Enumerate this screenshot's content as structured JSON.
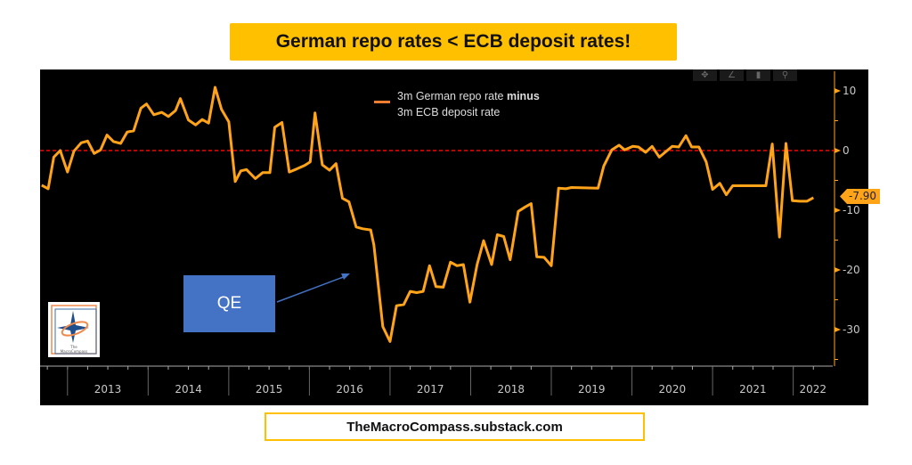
{
  "title": "German repo rates < ECB deposit rates!",
  "footer": "TheMacroCompass.substack.com",
  "annotation": {
    "label": "QE",
    "color": "#4472C4"
  },
  "logo": {
    "text": "The MacroCompass"
  },
  "toolbar": {
    "icons": [
      "move-icon",
      "draw-icon",
      "save-icon",
      "zoom-icon"
    ]
  },
  "colors": {
    "line": "#FFA319",
    "zero_line": "#FF0000",
    "background": "#000000",
    "title_bg": "#FFC000",
    "legend_swatch": "#ED7D31"
  },
  "chart_data": {
    "type": "line",
    "title": "",
    "legend": {
      "line1": "3m German repo rate ",
      "line1_bold": "minus",
      "line2": "3m ECB deposit rate",
      "placement": "top-center"
    },
    "last_value_label": "-7.90",
    "xlim": [
      2012.66,
      2022.49
    ],
    "ylim": [
      -36,
      14
    ],
    "y_ticks": [
      10,
      0,
      -10,
      -20,
      -30
    ],
    "y_tick_labels": [
      "10",
      "0",
      "-10",
      "-20",
      "-30"
    ],
    "x_tick_labels": [
      "2013",
      "2014",
      "2015",
      "2016",
      "2017",
      "2018",
      "2019",
      "2020",
      "2021",
      "2022"
    ],
    "reference_line": {
      "y": 0,
      "style": "dashed"
    },
    "grid": false,
    "y_axis_side": "right",
    "series": [
      {
        "x": [
          2012.68,
          2012.76,
          2012.83,
          2012.91,
          2013.0,
          2013.08,
          2013.17,
          2013.25,
          2013.33,
          2013.41,
          2013.49,
          2013.57,
          2013.66,
          2013.74,
          2013.82,
          2013.91,
          2013.98,
          2014.07,
          2014.17,
          2014.25,
          2014.34,
          2014.4,
          2014.5,
          2014.59,
          2014.67,
          2014.75,
          2014.83,
          2014.91,
          2015.0,
          2015.08,
          2015.15,
          2015.22,
          2015.33,
          2015.42,
          2015.51,
          2015.57,
          2015.66,
          2015.75,
          2015.84,
          2015.94,
          2016.01,
          2016.07,
          2016.16,
          2016.25,
          2016.33,
          2016.41,
          2016.49,
          2016.58,
          2016.66,
          2016.76,
          2016.8,
          2016.91,
          2017.0,
          2017.08,
          2017.17,
          2017.25,
          2017.33,
          2017.41,
          2017.49,
          2017.57,
          2017.66,
          2017.75,
          2017.83,
          2017.91,
          2017.99,
          2018.08,
          2018.16,
          2018.26,
          2018.33,
          2018.41,
          2018.49,
          2018.59,
          2018.67,
          2018.75,
          2018.82,
          2018.91,
          2019.0,
          2019.09,
          2019.18,
          2019.25,
          2019.58,
          2019.65,
          2019.75,
          2019.84,
          2019.91,
          2020.01,
          2020.08,
          2020.17,
          2020.25,
          2020.34,
          2020.41,
          2020.5,
          2020.58,
          2020.67,
          2020.74,
          2020.83,
          2020.92,
          2021.0,
          2021.09,
          2021.17,
          2021.25,
          2021.66,
          2021.74,
          2021.83,
          2021.91,
          2021.99,
          2022.08,
          2022.17,
          2022.25
        ],
        "y": [
          -5.8,
          -6.4,
          -1.1,
          0,
          -3.6,
          -0.1,
          1.3,
          1.6,
          -0.5,
          0.1,
          2.6,
          1.5,
          1.2,
          3.1,
          3.3,
          7.1,
          7.8,
          6.0,
          6.4,
          5.7,
          6.7,
          8.7,
          5.1,
          4.3,
          5.2,
          4.6,
          10.6,
          6.9,
          4.8,
          -5.2,
          -3.4,
          -3.2,
          -4.7,
          -3.7,
          -3.7,
          3.9,
          4.7,
          -3.6,
          -3.1,
          -2.5,
          -1.9,
          6.3,
          -2.4,
          -3.3,
          -2.2,
          -8.0,
          -8.6,
          -12.8,
          -13.1,
          -13.3,
          -15.8,
          -29.5,
          -32.0,
          -26.0,
          -25.8,
          -23.6,
          -23.8,
          -23.6,
          -19.3,
          -22.8,
          -22.9,
          -18.7,
          -19.3,
          -19.1,
          -25.4,
          -19.1,
          -15.1,
          -19.1,
          -14.1,
          -14.4,
          -18.3,
          -10.2,
          -9.5,
          -8.9,
          -17.8,
          -17.9,
          -19.3,
          -6.3,
          -6.4,
          -6.2,
          -6.3,
          -2.6,
          0.1,
          0.9,
          0.1,
          0.7,
          0.6,
          -0.3,
          0.7,
          -1.1,
          -0.3,
          0.7,
          0.6,
          2.5,
          0.6,
          0.6,
          -1.9,
          -6.5,
          -5.5,
          -7.4,
          -5.9,
          -5.9,
          1.1,
          -14.5,
          1.2,
          -8.4,
          -8.5,
          -8.5,
          -7.9
        ]
      }
    ]
  }
}
